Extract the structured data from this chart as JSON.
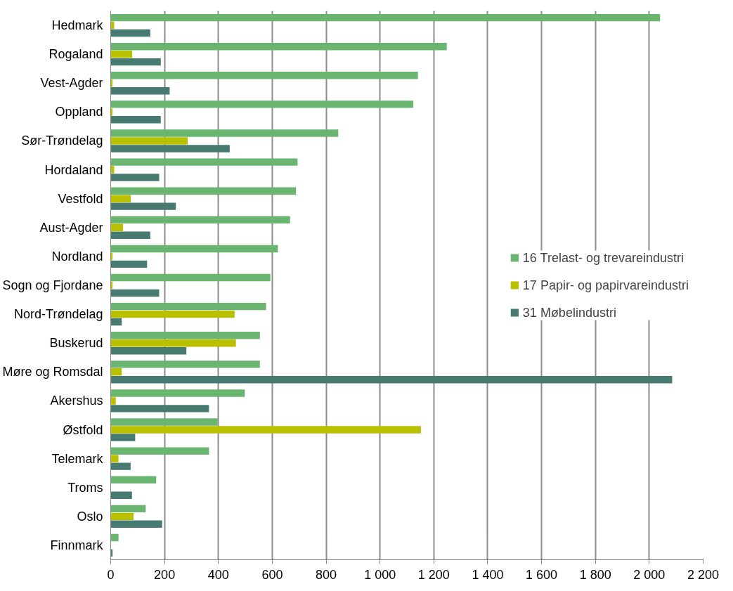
{
  "chart_data": {
    "type": "bar",
    "orientation": "horizontal",
    "categories": [
      "Hedmark",
      "Rogaland",
      "Vest-Agder",
      "Oppland",
      "Sør-Trøndelag",
      "Hordaland",
      "Vestfold",
      "Aust-Agder",
      "Nordland",
      "Sogn og Fjordane",
      "Nord-Trøndelag",
      "Buskerud",
      "Møre og Romsdal",
      "Akershus",
      "Østfold",
      "Telemark",
      "Troms",
      "Oslo",
      "Finnmark"
    ],
    "series": [
      {
        "name": "16 Trelast- og trevareindustri",
        "color": "#6ab56f",
        "values": [
          2040,
          1248,
          1141,
          1124,
          845,
          694,
          688,
          666,
          621,
          593,
          577,
          554,
          554,
          498,
          397,
          365,
          169,
          130,
          29
        ]
      },
      {
        "name": "17 Papir- og papirvareindustri",
        "color": "#b8c000",
        "values": [
          13,
          80,
          7,
          7,
          286,
          13,
          75,
          46,
          7,
          7,
          460,
          465,
          41,
          19,
          1152,
          29,
          0,
          85,
          0
        ]
      },
      {
        "name": "31 Møbelindustri",
        "color": "#477b72",
        "values": [
          147,
          186,
          219,
          186,
          442,
          180,
          242,
          147,
          135,
          180,
          41,
          281,
          2085,
          365,
          91,
          74,
          79,
          191,
          7
        ]
      }
    ],
    "xlim": [
      0,
      2200
    ],
    "xticks": [
      0,
      200,
      400,
      600,
      800,
      {
        "value": 1000,
        "label": "1 000"
      },
      {
        "value": 1200,
        "label": "1 200"
      },
      {
        "value": 1400,
        "label": "1 400"
      },
      {
        "value": 1600,
        "label": "1 600"
      },
      {
        "value": 1800,
        "label": "1 800"
      },
      {
        "value": 2000,
        "label": "2 000"
      },
      {
        "value": 2200,
        "label": "2 200"
      }
    ],
    "grid": "x",
    "legend": "right"
  }
}
